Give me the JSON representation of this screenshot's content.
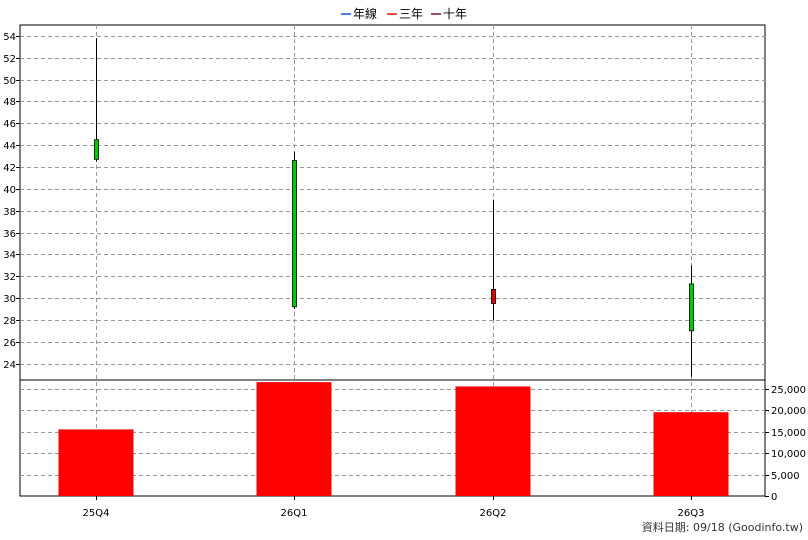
{
  "legend": [
    {
      "label": "年線",
      "color": "#1f4fd8"
    },
    {
      "label": "三年",
      "color": "#e01010"
    },
    {
      "label": "十年",
      "color": "#7a1040"
    }
  ],
  "credit": "資料日期: 09/18  (Goodinfo.tw)",
  "chart_data": [
    {
      "type": "candlestick",
      "categories": [
        "25Q4",
        "26Q1",
        "26Q2",
        "26Q3"
      ],
      "ylim": [
        22.5,
        55
      ],
      "yticks": [
        "24",
        "26",
        "28",
        "30",
        "32",
        "34",
        "36",
        "38",
        "40",
        "42",
        "44",
        "46",
        "48",
        "50",
        "52",
        "54"
      ],
      "grid": true,
      "candles": [
        {
          "x": "25Q4",
          "open": 44.5,
          "high": 53.8,
          "low": 42.5,
          "close": 42.7,
          "color": "#00cc00"
        },
        {
          "x": "26Q1",
          "open": 42.6,
          "high": 43.4,
          "low": 29.0,
          "close": 29.2,
          "color": "#00cc00"
        },
        {
          "x": "26Q2",
          "open": 29.5,
          "high": 39.0,
          "low": 28.0,
          "close": 30.8,
          "color": "#dd0000"
        },
        {
          "x": "26Q3",
          "open": 31.3,
          "high": 33.0,
          "low": 22.8,
          "close": 27.0,
          "color": "#00cc00"
        }
      ]
    },
    {
      "type": "bar",
      "categories": [
        "25Q4",
        "26Q1",
        "26Q2",
        "26Q3"
      ],
      "values": [
        15500,
        26500,
        25500,
        19500
      ],
      "ylim": [
        0,
        27000
      ],
      "yticks": [
        "0",
        "5,000",
        "10,000",
        "15,000",
        "20,000",
        "25,000"
      ],
      "color": "#ff0000",
      "grid": true
    }
  ]
}
